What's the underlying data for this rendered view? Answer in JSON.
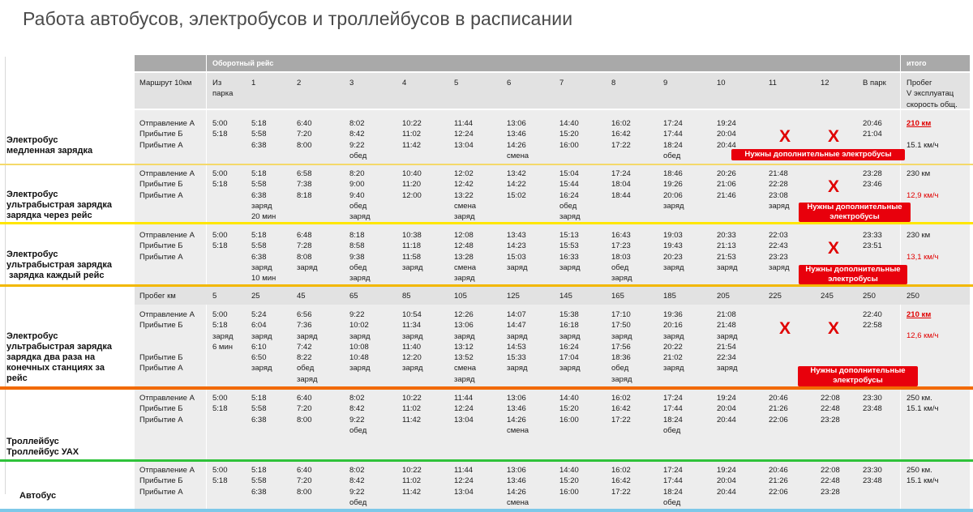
{
  "title": "Работа автобусов, электробусов и троллейбусов в расписании",
  "header": {
    "group": "Оборотный рейс",
    "total": "итого",
    "route": "Маршрут 10км",
    "from_park": "Из\nпарка",
    "trips": [
      "1",
      "2",
      "3",
      "4",
      "5",
      "6",
      "7",
      "8",
      "9",
      "10",
      "11",
      "12"
    ],
    "to_park": "В парк",
    "total_cols": "Пробег\nV эксплуатац\nскорость общ."
  },
  "sections": [
    {
      "label": "Электробус\nмедленная зарядка",
      "rowlabels": "Отправление А\nПрибытие Б\nПрибытие А",
      "park": "5:00\n5:18",
      "trips": [
        "5:18\n5:58\n6:38",
        "6:40\n7:20\n8:00",
        "8:02\n8:42\n9:22\nобед",
        "10:22\n11:02\n11:42",
        "11:44\n12:24\n13:04",
        "13:06\n13:46\n14:26\nсмена",
        "14:40\n15:20\n16:00",
        "16:02\n16:42\n17:22",
        "17:24\n17:44\n18:24\nобед",
        "19:24\n20:04\n20:44",
        "",
        ""
      ],
      "to_park": "20:46\n21:04",
      "total_km": "210 км",
      "total_speed": "15.1 км/ч",
      "banner": "Нужны дополнительные электробусы"
    },
    {
      "label": "Электробус\nультрабыстрая зарядка\nзарядка через рейс",
      "rowlabels": "Отправление А\nПрибытие Б\nПрибытие А",
      "park": "5:00\n5:18",
      "trips": [
        "5:18\n5:58\n6:38\nзаряд\n20 мин",
        "6:58\n7:38\n8:18",
        "8:20\n9:00\n9:40\nобед\nзаряд",
        "10:40\n11:20\n12:00",
        "12:02\n12:42\n13:22\nсмена\nзаряд",
        "13:42\n14:22\n15:02",
        "15:04\n15:44\n16:24\nобед\nзаряд",
        "17:24\n18:04\n18:44",
        "18:46\n19:26\n20:06\nзаряд",
        "20:26\n21:06\n21:46",
        "21:48\n22:28\n23:08\nзаряд",
        ""
      ],
      "to_park": "23:28\n23:46",
      "total_km": "230 км",
      "total_speed": "12,9 км/ч",
      "banner": "Нужны дополнительные\nэлектробусы"
    },
    {
      "label": "Электробус\nультрабыстрая зарядка\n зарядка каждый рейс",
      "rowlabels": "Отправление А\nПрибытие Б\nПрибытие А",
      "park": "5:00\n5:18",
      "trips": [
        "5:18\n5:58\n6:38\nзаряд\n10 мин",
        "6:48\n7:28\n8:08\nзаряд",
        "8:18\n8:58\n9:38\nобед\nзаряд",
        "10:38\n11:18\n11:58\nзаряд",
        "12:08\n12:48\n13:28\nсмена\nзаряд",
        "13:43\n14:23\n15:03\nзаряд",
        "15:13\n15:53\n16:33\nзаряд",
        "16:43\n17:23\n18:03\nобед\nзаряд",
        "19:03\n19:43\n20:23\nзаряд",
        "20:33\n21:13\n21:53\nзаряд",
        "22:03\n22:43\n23:23\nзаряд",
        ""
      ],
      "to_park": "23:33\n23:51",
      "total_km": "230 км",
      "total_speed": "13,1 км/ч",
      "banner": "Нужны дополнительные\nэлектробусы"
    },
    {
      "label": "Электробус\nультрабыстрая зарядка\nзарядка два раза на\nконечных станциях за\nрейс",
      "mileage_label": "Пробег км",
      "mileage": [
        "5",
        "25",
        "45",
        "65",
        "85",
        "105",
        "125",
        "145",
        "165",
        "185",
        "205",
        "225",
        "245",
        "250",
        "250"
      ],
      "rowlabels": "Отправление А\nПрибытие Б\n\n\nПрибытие Б\nПрибытие А",
      "park": "5:00\n5:18\nзаряд\n6 мин",
      "trips": [
        "5:24\n6:04\nзаряд\n6:10\n6:50\nзаряд",
        "6:56\n7:36\nзаряд\n7:42\n8:22\nобед\nзаряд",
        "9:22\n10:02\nзаряд\n10:08\n10:48\nзаряд",
        "10:54\n11:34\nзаряд\n11:40\n12:20\nзаряд",
        "12:26\n13:06\nзаряд\n13:12\n13:52\nсмена\nзаряд",
        "14:07\n14:47\nзаряд\n14:53\n15:33\nзаряд",
        "15:38\n16:18\nзаряд\n16:24\n17:04\nзаряд",
        "17:10\n17:50\nзаряд\n17:56\n18:36\nобед\nзаряд",
        "19:36\n20:16\nзаряд\n20:22\n21:02\nзаряд",
        "21:08\n21:48\nзаряд\n21:54\n22:34\nзаряд",
        "",
        ""
      ],
      "to_park": "22:40\n22:58",
      "total_km": "210 км",
      "total_speed": "12,6 км/ч",
      "banner": "Нужны дополнительные\nэлектробусы"
    },
    {
      "label": "Троллейбус\nТроллейбус УАХ",
      "rowlabels": "Отправление А\nПрибытие Б\nПрибытие А",
      "park": "5:00\n5:18",
      "trips": [
        "5:18\n5:58\n6:38",
        "6:40\n7:20\n8:00",
        "8:02\n8:42\n9:22\nобед",
        "10:22\n11:02\n11:42",
        "11:44\n12:24\n13:04",
        "13:06\n13:46\n14:26\nсмена",
        "14:40\n15:20\n16:00",
        "16:02\n16:42\n17:22",
        "17:24\n17:44\n18:24\nобед",
        "19:24\n20:04\n20:44",
        "20:46\n21:26\n22:06",
        "22:08\n22:48\n23:28"
      ],
      "to_park": "23:30\n23:48",
      "total_km": "250 км.",
      "total_speed": "15.1 км/ч"
    },
    {
      "label": "Автобус",
      "rowlabels": "Отправление А\nПрибытие Б\nПрибытие А",
      "park": "5:00\n5:18",
      "trips": [
        "5:18\n5:58\n6:38",
        "6:40\n7:20\n8:00",
        "8:02\n8:42\n9:22\nобед",
        "10:22\n11:02\n11:42",
        "11:44\n12:24\n13:04",
        "13:06\n13:46\n14:26\nсмена",
        "14:40\n15:20\n16:00",
        "16:02\n16:42\n17:22",
        "17:24\n17:44\n18:24\nобед",
        "19:24\n20:04\n20:44",
        "20:46\n21:26\n22:06",
        "22:08\n22:48\n23:28"
      ],
      "to_park": "23:30\n23:48",
      "total_km": "250 км.",
      "total_speed": "15.1 км/ч"
    }
  ],
  "x_mark": "X",
  "colors": {
    "header_dark": "#a9a9a9",
    "header_light": "#e2e2e2",
    "row_bg": "#ededed",
    "accent_red": "#e10000",
    "sep_1": "#f4d96a",
    "sep_2": "#ffe600",
    "sep_3": "#f2b800",
    "sep_4": "#f26a00",
    "sep_5": "#2fc23a",
    "bottom": "#7ec8e8"
  }
}
